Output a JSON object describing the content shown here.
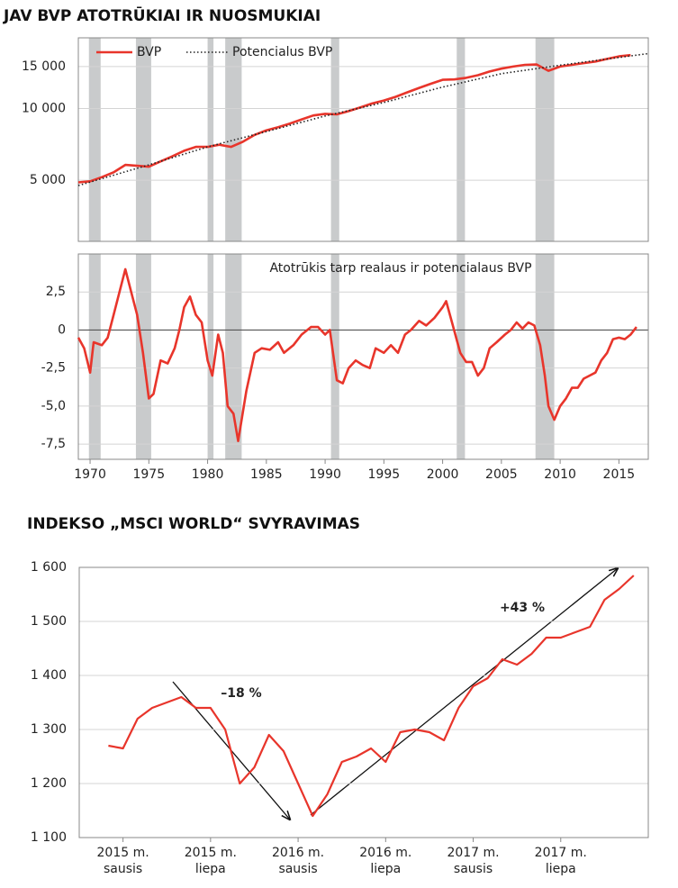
{
  "chart_data": [
    {
      "type": "line",
      "title": "JAV BVP ATOTRŪKIAI IR NUOSMUKIAI",
      "x": [
        1969,
        1970,
        1971,
        1972,
        1973,
        1974,
        1975,
        1976,
        1977,
        1978,
        1979,
        1980,
        1981,
        1982,
        1983,
        1984,
        1985,
        1986,
        1987,
        1988,
        1989,
        1990,
        1991,
        1992,
        1993,
        1994,
        1995,
        1996,
        1997,
        1998,
        1999,
        2000,
        2001,
        2002,
        2003,
        2004,
        2005,
        2006,
        2007,
        2008,
        2009,
        2010,
        2011,
        2012,
        2013,
        2014,
        2015,
        2016
      ],
      "series": [
        {
          "name": "BVP",
          "color": "#e8352b",
          "style": "solid",
          "values": [
            4900,
            4950,
            5150,
            5400,
            5800,
            5750,
            5700,
            6000,
            6300,
            6650,
            6900,
            6900,
            7050,
            6900,
            7250,
            7750,
            8100,
            8350,
            8650,
            9000,
            9350,
            9500,
            9450,
            9750,
            10100,
            10500,
            10800,
            11200,
            11700,
            12200,
            12700,
            13200,
            13250,
            13450,
            13800,
            14300,
            14700,
            15000,
            15250,
            15300,
            14400,
            15000,
            15250,
            15500,
            15750,
            16150,
            16550,
            16750
          ]
        },
        {
          "name": "Potencialus BVP",
          "color": "#222222",
          "style": "dotted",
          "x": [
            1969,
            1975,
            1980,
            1985,
            1990,
            1995,
            2000,
            2005,
            2010,
            2017.5
          ],
          "values": [
            4750,
            5800,
            6900,
            8000,
            9300,
            10600,
            12300,
            14000,
            15200,
            17000
          ]
        }
      ],
      "shaded_ranges": [
        [
          1969.9,
          1970.9
        ],
        [
          1973.9,
          1975.2
        ],
        [
          1980.0,
          1980.5
        ],
        [
          1981.5,
          1982.9
        ],
        [
          1990.5,
          1991.2
        ],
        [
          2001.2,
          2001.9
        ],
        [
          2007.9,
          2009.5
        ]
      ],
      "shade_color": "#c9cbcc",
      "xlim": [
        1969,
        2017.5
      ],
      "ylim": [
        2770,
        19800
      ],
      "log_scale": true,
      "yticks": [
        {
          "value": 5000,
          "label": "5 000"
        },
        {
          "value": 10000,
          "label": "10 000"
        },
        {
          "value": 15000,
          "label": "15 000"
        }
      ],
      "grid": true,
      "legend": "top-left"
    },
    {
      "type": "line",
      "annotation": "Atotrūkis tarp realaus ir potencialaus BVP",
      "x": [
        1969.0,
        1969.5,
        1970.0,
        1970.3,
        1971,
        1971.5,
        1972,
        1972.5,
        1973.0,
        1973.5,
        1974,
        1974.5,
        1975.0,
        1975.4,
        1976,
        1976.6,
        1977.2,
        1977.6,
        1978.0,
        1978.5,
        1979,
        1979.5,
        1980.0,
        1980.4,
        1980.9,
        1981.3,
        1981.7,
        1982.2,
        1982.6,
        1983.3,
        1984.0,
        1984.6,
        1985.3,
        1986,
        1986.5,
        1987.3,
        1988,
        1988.8,
        1989.4,
        1990,
        1990.4,
        1991,
        1991.5,
        1992,
        1992.6,
        1993.2,
        1993.8,
        1994.3,
        1995,
        1995.6,
        1996.2,
        1996.8,
        1997.3,
        1998,
        1998.6,
        1999.3,
        2000.0,
        2000.3,
        2000.8,
        2001.5,
        2002,
        2002.5,
        2003,
        2003.5,
        2004,
        2004.6,
        2005.3,
        2005.8,
        2006.3,
        2006.8,
        2007.3,
        2007.8,
        2008.3,
        2008.7,
        2009.0,
        2009.5,
        2010,
        2010.5,
        2011,
        2011.5,
        2012,
        2012.5,
        2013,
        2013.5,
        2014,
        2014.5,
        2015,
        2015.5,
        2016,
        2016.5
      ],
      "series": [
        {
          "name": null,
          "color": "#e8352b",
          "values": [
            -0.5,
            -1.2,
            -2.8,
            -0.8,
            -1.0,
            -0.5,
            1.0,
            2.5,
            4.0,
            2.5,
            1.0,
            -1.5,
            -4.5,
            -4.2,
            -2.0,
            -2.2,
            -1.2,
            0.0,
            1.5,
            2.2,
            1.0,
            0.5,
            -2.0,
            -3.0,
            -0.3,
            -1.5,
            -5.0,
            -5.5,
            -7.3,
            -4.0,
            -1.5,
            -1.2,
            -1.3,
            -0.8,
            -1.5,
            -1.0,
            -0.3,
            0.2,
            0.2,
            -0.3,
            0.0,
            -3.3,
            -3.5,
            -2.5,
            -2.0,
            -2.3,
            -2.5,
            -1.2,
            -1.5,
            -1.0,
            -1.5,
            -0.3,
            0.0,
            0.6,
            0.3,
            0.8,
            1.5,
            1.9,
            0.5,
            -1.5,
            -2.1,
            -2.1,
            -3.0,
            -2.5,
            -1.2,
            -0.8,
            -0.3,
            0.0,
            0.5,
            0.1,
            0.5,
            0.3,
            -1.0,
            -3.0,
            -5.0,
            -5.9,
            -5.0,
            -4.5,
            -3.8,
            -3.8,
            -3.2,
            -3.0,
            -2.8,
            -2.0,
            -1.5,
            -0.6,
            -0.5,
            -0.6,
            -0.3,
            0.2
          ]
        }
      ],
      "xlim": [
        1969,
        2017.5
      ],
      "xticks": [
        1970,
        1975,
        1980,
        1985,
        1990,
        1995,
        2000,
        2005,
        2010,
        2015
      ],
      "ylim": [
        -8.5,
        5
      ],
      "yticks": [
        {
          "value": 2.5,
          "label": "2,5"
        },
        0,
        {
          "value": -2.5,
          "label": "-2,5"
        },
        {
          "value": -5,
          "label": "-5,0"
        },
        {
          "value": -7.5,
          "label": "-7,5"
        }
      ],
      "grid": true
    },
    {
      "type": "line",
      "title": "INDEKSO „MSCI WORLD“ SVYRAVIMAS",
      "x": [
        "2014-12",
        "2015-01",
        "2015-02",
        "2015-03",
        "2015-04",
        "2015-05",
        "2015-06",
        "2015-07",
        "2015-08",
        "2015-09",
        "2015-10",
        "2015-11",
        "2015-12",
        "2016-01",
        "2016-02",
        "2016-03",
        "2016-04",
        "2016-05",
        "2016-06",
        "2016-07",
        "2016-08",
        "2016-09",
        "2016-10",
        "2016-11",
        "2016-12",
        "2017-01",
        "2017-02",
        "2017-03",
        "2017-04",
        "2017-05",
        "2017-06",
        "2017-07",
        "2017-08",
        "2017-09",
        "2017-10",
        "2017-11",
        "2017-12"
      ],
      "series": [
        {
          "name": null,
          "color": "#e8352b",
          "values": [
            1270,
            1265,
            1320,
            1340,
            1350,
            1360,
            1340,
            1340,
            1300,
            1200,
            1230,
            1290,
            1260,
            1200,
            1140,
            1180,
            1240,
            1250,
            1265,
            1240,
            1295,
            1300,
            1295,
            1280,
            1340,
            1380,
            1395,
            1430,
            1420,
            1440,
            1470,
            1470,
            1480,
            1490,
            1540,
            1560,
            1585
          ]
        }
      ],
      "xlim": [
        "2014-10",
        "2018-01"
      ],
      "xticks": [
        {
          "value": "2015-01",
          "label": "2015 m. sausis"
        },
        {
          "value": "2015-07",
          "label": "2015 m. liepa"
        },
        {
          "value": "2016-01",
          "label": "2016 m. sausis"
        },
        {
          "value": "2016-07",
          "label": "2016 m. liepa"
        },
        {
          "value": "2017-01",
          "label": "2017 m. sausis"
        },
        {
          "value": "2017-07",
          "label": "2017 m. liepa"
        }
      ],
      "ylim": [
        1100,
        1600
      ],
      "yticks": [
        {
          "value": 1100,
          "label": "1 100"
        },
        {
          "value": 1200,
          "label": "1 200"
        },
        {
          "value": 1300,
          "label": "1 300"
        },
        {
          "value": 1400,
          "label": "1 400"
        },
        {
          "value": 1500,
          "label": "1 500"
        },
        {
          "value": 1600,
          "label": "1 600"
        }
      ],
      "grid": true,
      "annotations": [
        "–18 %",
        "+43 %"
      ]
    }
  ]
}
